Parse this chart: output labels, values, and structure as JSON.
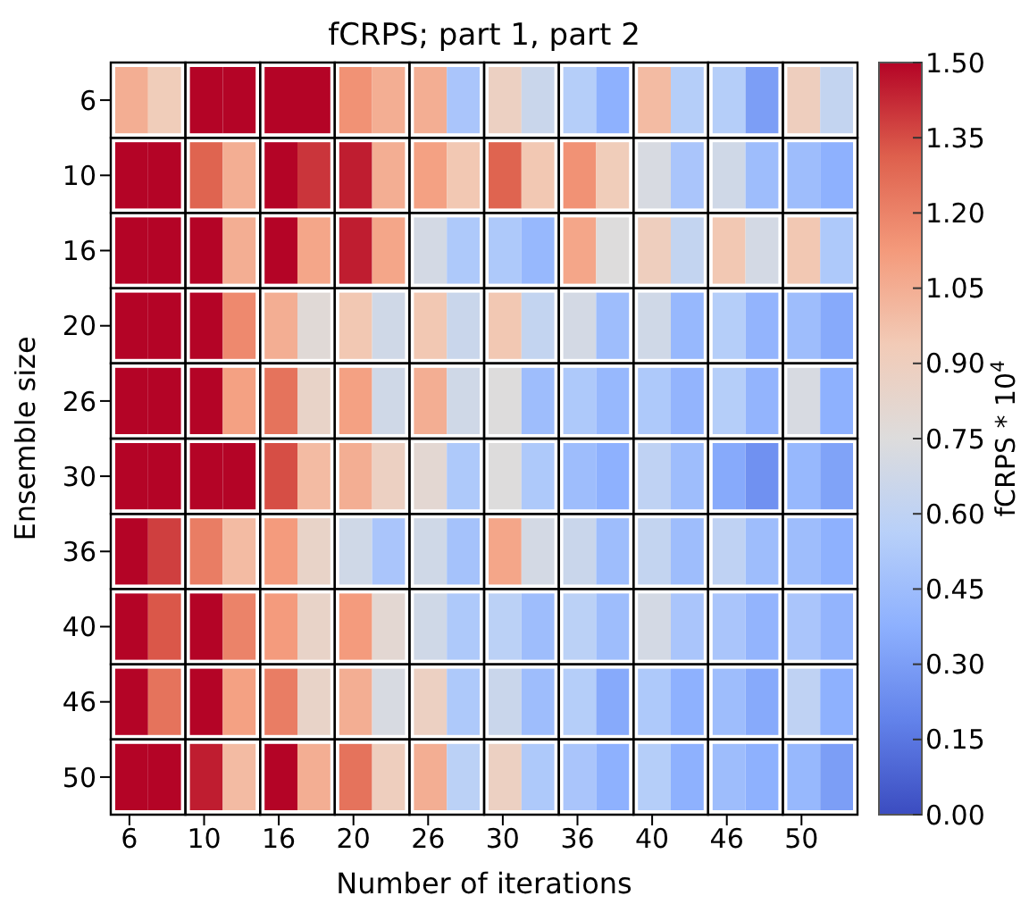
{
  "chart_data": {
    "type": "heatmap",
    "title": "fCRPS; part 1, part 2",
    "xlabel": "Number of iterations",
    "ylabel": "Ensemble size",
    "clabel": "fCRPS * 10$^{4}$",
    "categories": [
      "6",
      null,
      "10",
      null,
      "16",
      null,
      "20",
      null,
      "26",
      null,
      "30",
      null,
      "36",
      null,
      "40",
      null,
      "46",
      null,
      "50",
      null
    ],
    "y_categories": [
      "6",
      "10",
      "16",
      "20",
      "26",
      "30",
      "36",
      "40",
      "46",
      "50"
    ],
    "cells": [
      [
        1.05,
        0.92,
        1.5,
        1.5,
        1.5,
        1.5,
        1.15,
        1.05,
        1.05,
        0.5,
        0.88,
        0.65,
        0.55,
        0.38,
        1.0,
        0.55,
        0.55,
        0.3,
        0.9,
        0.62
      ],
      [
        1.5,
        1.5,
        1.3,
        1.05,
        1.5,
        1.4,
        1.45,
        1.05,
        1.1,
        0.95,
        1.3,
        0.95,
        1.15,
        0.92,
        0.72,
        0.5,
        0.68,
        0.45,
        0.45,
        0.38
      ],
      [
        1.5,
        1.5,
        1.5,
        1.05,
        1.5,
        1.08,
        1.45,
        1.08,
        0.7,
        0.52,
        0.52,
        0.42,
        1.08,
        0.75,
        0.9,
        0.62,
        0.95,
        0.7,
        0.95,
        0.52
      ],
      [
        1.5,
        1.5,
        1.5,
        1.18,
        1.05,
        0.78,
        0.95,
        0.68,
        0.95,
        0.65,
        0.95,
        0.62,
        0.7,
        0.45,
        0.68,
        0.42,
        0.55,
        0.4,
        0.45,
        0.35
      ],
      [
        1.5,
        1.5,
        1.5,
        1.1,
        1.25,
        0.85,
        1.1,
        0.68,
        1.05,
        0.68,
        0.75,
        0.45,
        0.52,
        0.42,
        0.52,
        0.4,
        0.55,
        0.4,
        0.72,
        0.38
      ],
      [
        1.5,
        1.5,
        1.5,
        1.5,
        1.35,
        1.0,
        1.05,
        0.88,
        0.8,
        0.52,
        0.75,
        0.52,
        0.45,
        0.38,
        0.6,
        0.45,
        0.35,
        0.25,
        0.42,
        0.32
      ],
      [
        1.5,
        1.38,
        1.22,
        1.0,
        1.12,
        0.85,
        0.68,
        0.5,
        0.68,
        0.48,
        1.08,
        0.7,
        0.65,
        0.45,
        0.62,
        0.45,
        0.6,
        0.45,
        0.45,
        0.38
      ],
      [
        1.5,
        1.33,
        1.5,
        1.2,
        1.12,
        0.85,
        1.12,
        0.8,
        0.68,
        0.52,
        0.58,
        0.45,
        0.58,
        0.45,
        0.7,
        0.5,
        0.5,
        0.4,
        0.5,
        0.4
      ],
      [
        1.5,
        1.25,
        1.5,
        1.1,
        1.22,
        0.85,
        1.05,
        0.72,
        0.88,
        0.52,
        0.65,
        0.45,
        0.55,
        0.35,
        0.52,
        0.38,
        0.45,
        0.35,
        0.6,
        0.38
      ],
      [
        1.5,
        1.5,
        1.45,
        1.0,
        1.5,
        1.05,
        1.25,
        0.9,
        1.05,
        0.58,
        0.88,
        0.52,
        0.5,
        0.38,
        0.55,
        0.38,
        0.45,
        0.38,
        0.42,
        0.3
      ]
    ],
    "clim": [
      0,
      1.5
    ],
    "cticks": [
      {
        "value": 0,
        "label": "0.00"
      },
      0.15,
      {
        "value": 0.3,
        "label": "0.30"
      },
      0.45,
      {
        "value": 0.6,
        "label": "0.60"
      },
      0.75,
      {
        "value": 0.9,
        "label": "0.90"
      },
      1.05,
      {
        "value": 1.2,
        "label": "1.20"
      },
      1.35,
      {
        "value": 1.5,
        "label": "1.50"
      }
    ]
  }
}
